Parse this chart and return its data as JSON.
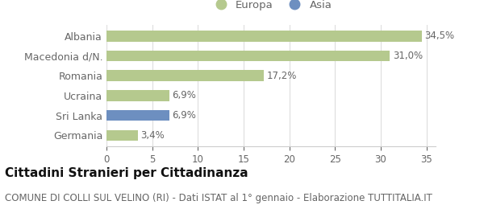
{
  "categories": [
    "Albania",
    "Macedonia d/N.",
    "Romania",
    "Ucraina",
    "Sri Lanka",
    "Germania"
  ],
  "values": [
    34.5,
    31.0,
    17.2,
    6.9,
    6.9,
    3.4
  ],
  "labels": [
    "34,5%",
    "31,0%",
    "17,2%",
    "6,9%",
    "6,9%",
    "3,4%"
  ],
  "colors": [
    "#b5c98e",
    "#b5c98e",
    "#b5c98e",
    "#b5c98e",
    "#6d8fc0",
    "#b5c98e"
  ],
  "xlim": [
    0,
    36
  ],
  "xticks": [
    0,
    5,
    10,
    15,
    20,
    25,
    30,
    35
  ],
  "legend_europa_color": "#b5c98e",
  "legend_asia_color": "#6d8fc0",
  "title": "Cittadini Stranieri per Cittadinanza",
  "subtitle": "COMUNE DI COLLI SUL VELINO (RI) - Dati ISTAT al 1° gennaio - Elaborazione TUTTITALIA.IT",
  "bg_color": "#ffffff",
  "bar_height": 0.55,
  "title_fontsize": 11,
  "subtitle_fontsize": 8.5,
  "label_fontsize": 8.5,
  "tick_fontsize": 8.5,
  "ytick_fontsize": 9,
  "text_color": "#666666",
  "title_color": "#111111"
}
